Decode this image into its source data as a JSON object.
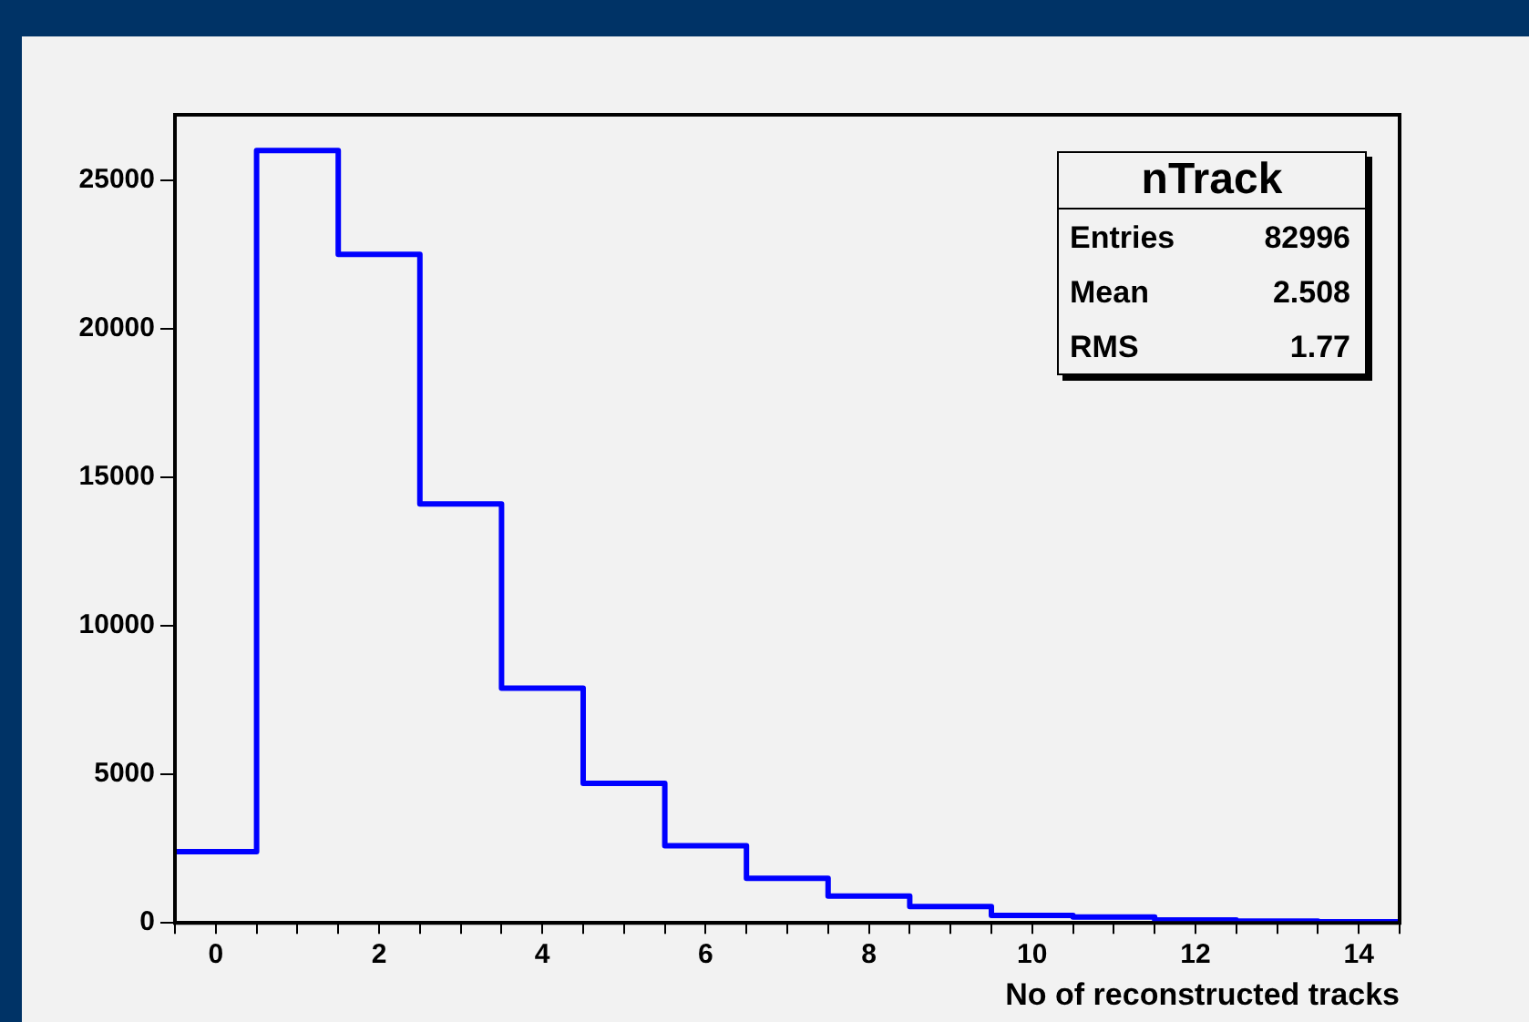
{
  "chart_data": {
    "type": "histogram",
    "title": "nTrack",
    "xlabel": "No of reconstructed tracks",
    "bins": [
      -0.5,
      0.5,
      1.5,
      2.5,
      3.5,
      4.5,
      5.5,
      6.5,
      7.5,
      8.5,
      9.5,
      10.5,
      11.5,
      12.5,
      13.5,
      14.5
    ],
    "values": [
      2400,
      26000,
      22500,
      14100,
      7900,
      4700,
      2600,
      1500,
      900,
      550,
      250,
      200,
      100,
      60,
      40
    ],
    "color": "#0000ff",
    "xlim": [
      -0.5,
      14.5
    ],
    "xticks": [
      {
        "value": -0.5,
        "label": null
      },
      0,
      {
        "value": 0.5,
        "label": null
      },
      {
        "value": 1,
        "label": null
      },
      {
        "value": 1.5,
        "label": null
      },
      2,
      {
        "value": 2.5,
        "label": null
      },
      {
        "value": 3,
        "label": null
      },
      {
        "value": 3.5,
        "label": null
      },
      4,
      {
        "value": 4.5,
        "label": null
      },
      {
        "value": 5,
        "label": null
      },
      {
        "value": 5.5,
        "label": null
      },
      6,
      {
        "value": 6.5,
        "label": null
      },
      {
        "value": 7,
        "label": null
      },
      {
        "value": 7.5,
        "label": null
      },
      8,
      {
        "value": 8.5,
        "label": null
      },
      {
        "value": 9,
        "label": null
      },
      {
        "value": 9.5,
        "label": null
      },
      10,
      {
        "value": 10.5,
        "label": null
      },
      {
        "value": 11,
        "label": null
      },
      {
        "value": 11.5,
        "label": null
      },
      12,
      {
        "value": 12.5,
        "label": null
      },
      {
        "value": 13,
        "label": null
      },
      {
        "value": 13.5,
        "label": null
      },
      14,
      {
        "value": 14.5,
        "label": null
      }
    ],
    "ylim": [
      0,
      27200
    ],
    "yticks": [
      0,
      5000,
      10000,
      15000,
      20000,
      25000
    ],
    "grid": false,
    "legend": false,
    "annotations": [
      "Entries 82996",
      "Mean 2.508",
      "RMS 1.77"
    ]
  }
}
